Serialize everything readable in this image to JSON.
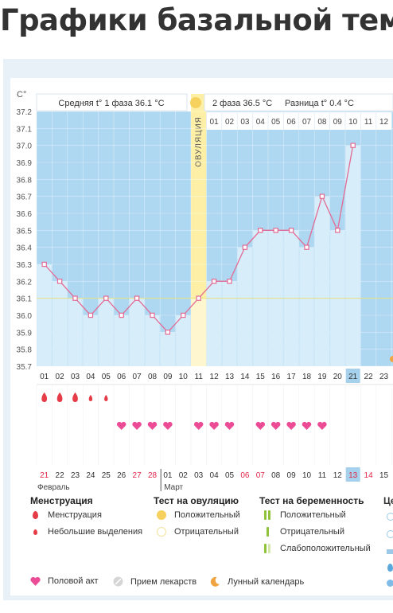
{
  "page": {
    "title": "Графики базальной температуры"
  },
  "header": {
    "phase1": "Средняя t° 1 фаза 36.1 °С",
    "phase2": "2 фаза 36.5 °С",
    "difference": "Разница t° 0.4 °С",
    "ovulation": "ОВУЛЯЦИЯ"
  },
  "chart_data": {
    "type": "line",
    "ylabel": "С°",
    "ylim": [
      35.7,
      37.2
    ],
    "yticks": [
      "37.2",
      "37.1",
      "37.0",
      "36.9",
      "36.8",
      "36.7",
      "36.6",
      "36.5",
      "36.4",
      "36.3",
      "36.2",
      "36.1",
      "36.0",
      "35.9",
      "35.8",
      "35.7"
    ],
    "cycle_days": [
      "01",
      "02",
      "03",
      "04",
      "05",
      "06",
      "07",
      "08",
      "09",
      "10",
      "11",
      "12",
      "13",
      "14",
      "15",
      "16",
      "17",
      "18",
      "19",
      "20",
      "21",
      "22",
      "23"
    ],
    "phase2_days": [
      "01",
      "02",
      "03",
      "04",
      "05",
      "06",
      "07",
      "08",
      "09",
      "10",
      "11",
      "12"
    ],
    "series": [
      {
        "values": [
          36.3,
          36.2,
          36.1,
          36.0,
          36.1,
          36.0,
          36.1,
          36.0,
          35.9,
          36.0,
          36.1,
          36.2,
          36.2,
          36.4,
          36.5,
          36.5,
          36.5,
          36.4,
          36.7,
          36.5,
          37.0
        ]
      }
    ],
    "coverline": 36.1,
    "ovulation_day": "11",
    "current_day": "21",
    "menstruation": [
      "large",
      "large",
      "large",
      "small",
      "small"
    ],
    "intercourse_days": [
      "06",
      "07",
      "08",
      "09",
      "11",
      "12",
      "13",
      "15",
      "16",
      "17",
      "18",
      "19"
    ],
    "calendar_dates": [
      "21",
      "22",
      "23",
      "24",
      "25",
      "26",
      "27",
      "28",
      "01",
      "02",
      "03",
      "04",
      "05",
      "06",
      "07",
      "08",
      "09",
      "10",
      "11",
      "12",
      "13",
      "14",
      "15"
    ],
    "weekend_dates": [
      "21",
      "27",
      "28",
      "06",
      "07",
      "13",
      "14"
    ],
    "months": [
      "Февраль",
      "Март"
    ]
  },
  "legend": {
    "menstruation": {
      "title": "Менструация",
      "items": [
        "Менструация",
        "Небольшие выделения"
      ]
    },
    "ovulation_test": {
      "title": "Тест на овуляцию",
      "items": [
        "Положительный",
        "Отрицательный"
      ]
    },
    "pregnancy_test": {
      "title": "Тест на беременность",
      "items": [
        "Положительный",
        "Отрицательный",
        "Слабоположительный"
      ]
    },
    "extra_title": "Це",
    "bottom": [
      "Половой акт",
      "Прием лекарств",
      "Лунный календарь"
    ]
  },
  "colors": {
    "phase_bg": "#aed7f1",
    "bar_fill": "#d7edfa",
    "line": "#e36a93",
    "ovulation": "#fdf0a6",
    "accent": "#e53c47",
    "heart": "#ec4b96",
    "highlight": "#a6d1ec"
  }
}
